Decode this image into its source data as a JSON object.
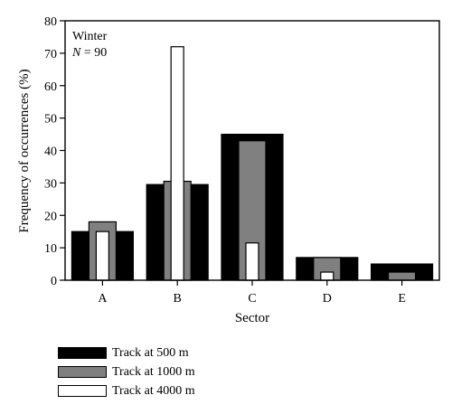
{
  "chart_data": {
    "type": "bar",
    "title": "",
    "xlabel": "Sector",
    "ylabel": "Frequency of occurrences (%)",
    "ylim": [
      0,
      80
    ],
    "yticks": [
      0,
      10,
      20,
      30,
      40,
      50,
      60,
      70,
      80
    ],
    "categories": [
      "A",
      "B",
      "C",
      "D",
      "E"
    ],
    "annotation": {
      "line1": "Winter",
      "n_symbol": "N",
      "n_text": " = 90"
    },
    "series": [
      {
        "name": "Track at 500 m",
        "color": "#000000",
        "values": [
          15,
          29.5,
          45,
          7,
          5
        ]
      },
      {
        "name": "Track at 1000 m",
        "color": "#808080",
        "values": [
          18,
          30.5,
          43,
          7,
          2.5
        ]
      },
      {
        "name": "Track at 4000 m",
        "color": "#ffffff",
        "values": [
          15,
          72,
          11.5,
          2.5,
          0
        ]
      }
    ],
    "legend_position": "bottom-left",
    "grid": false
  }
}
